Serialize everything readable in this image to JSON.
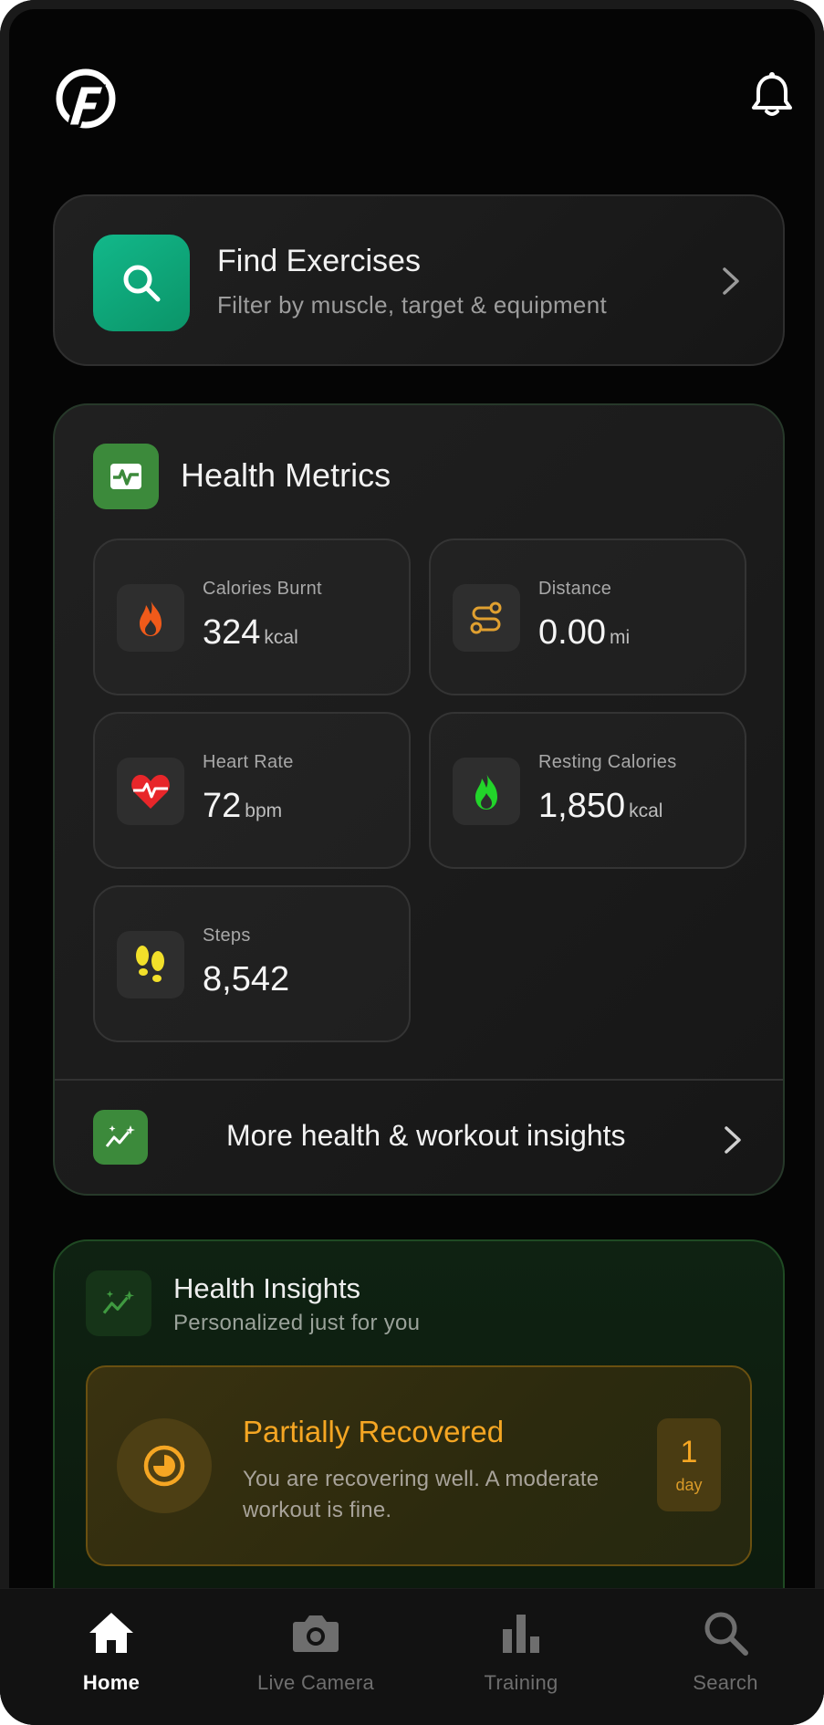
{
  "header": {
    "logo_icon": "app-logo-f",
    "notification_icon": "bell-icon"
  },
  "find_exercises": {
    "title": "Find Exercises",
    "subtitle": "Filter by muscle, target & equipment",
    "icon": "search-icon",
    "accent": "#10a77a"
  },
  "health_metrics": {
    "title": "Health Metrics",
    "icon": "activity-monitor-icon",
    "tiles": [
      {
        "label": "Calories Burnt",
        "value": "324",
        "unit": "kcal",
        "icon": "flame-icon",
        "color": "#f05a1a"
      },
      {
        "label": "Distance",
        "value": "0.00",
        "unit": "mi",
        "icon": "route-icon",
        "color": "#e0a030"
      },
      {
        "label": "Heart Rate",
        "value": "72",
        "unit": "bpm",
        "icon": "heart-pulse-icon",
        "color": "#e8262a"
      },
      {
        "label": "Resting Calories",
        "value": "1,850",
        "unit": "kcal",
        "icon": "flame-icon",
        "color": "#22d42a"
      },
      {
        "label": "Steps",
        "value": "8,542",
        "unit": "",
        "icon": "footprints-icon",
        "color": "#f2e02a"
      }
    ],
    "more_link": {
      "label": "More health & workout insights",
      "icon": "trend-sparkle-icon"
    }
  },
  "health_insights": {
    "title": "Health Insights",
    "subtitle": "Personalized just for you",
    "icon": "trend-sparkle-icon",
    "recovery": {
      "title": "Partially Recovered",
      "description": "You are recovering well. A moderate workout is fine.",
      "badge_value": "1",
      "badge_unit": "day",
      "icon": "recovery-gauge-icon",
      "color": "#f5a623"
    }
  },
  "bottom_nav": {
    "items": [
      {
        "label": "Home",
        "icon": "home-icon",
        "active": true
      },
      {
        "label": "Live Camera",
        "icon": "camera-icon",
        "active": false
      },
      {
        "label": "Training",
        "icon": "bar-chart-icon",
        "active": false
      },
      {
        "label": "Search",
        "icon": "search-icon",
        "active": false
      }
    ]
  }
}
